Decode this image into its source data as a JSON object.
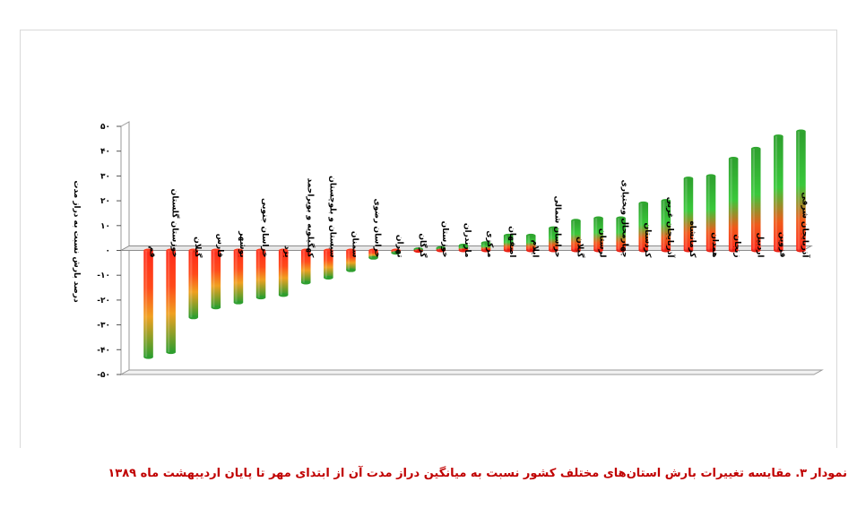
{
  "caption": "نمودار ۳. مقایسه تغییرات بارش استان‌های مختلف کشور نسبت به میانگین دراز مدت آن از ابتدای مهر تا پایان اردیبهشت ماه ۱۳۸۹",
  "chart_data": {
    "type": "bar",
    "title": "",
    "ylabel": "درصد بارش نسبت به دراز مدت",
    "xlabel": "",
    "ylim": [
      -50,
      50
    ],
    "yticks": [
      50,
      40,
      30,
      20,
      10,
      0,
      -10,
      -20,
      -30,
      -40,
      -50
    ],
    "ytick_labels": [
      "۵۰",
      "۴۰",
      "۳۰",
      "۲۰",
      "۱۰",
      "۰",
      "-۱۰",
      "-۲۰",
      "-۳۰",
      "-۴۰",
      "-۵۰"
    ],
    "grid": false,
    "legend": "none",
    "colors": {
      "negative_base": "#ff2a1a",
      "negative_tip": "#2e9e2e",
      "positive_base": "#ff2a1a",
      "positive_tip": "#2ea02e",
      "mid": "#ffd400"
    },
    "categories": [
      "قم",
      "خوزستان ‌گلستان",
      "گیلان",
      "فارس",
      "بوشهر",
      "خراسان جنوبی",
      "یزد",
      "کهگیلویه و بویراحمد",
      "سیستان و بلوچستان",
      "سمنان",
      "خراسان رضوی",
      "تهران",
      "گرگان",
      "خوزستان",
      "مازندران",
      "مرکزی",
      "اصفهان",
      "ایلام",
      "خراسان شمالی",
      "گیلان",
      "لرستان",
      "چهارمحال وبختیاری",
      "کردستان",
      "آذربایجان غربی",
      "کرمانشاه",
      "همدان",
      "زنجان",
      "اردبیل",
      "قزوین",
      "آذربایجان شرقی"
    ],
    "values": [
      -43,
      -41,
      -27,
      -23,
      -21,
      -19,
      -18,
      -13,
      -11,
      -8,
      -3,
      -1,
      0.5,
      1,
      2,
      3,
      6,
      6,
      9,
      12,
      13,
      13,
      19,
      20,
      29,
      30,
      37,
      41,
      46,
      48
    ]
  }
}
